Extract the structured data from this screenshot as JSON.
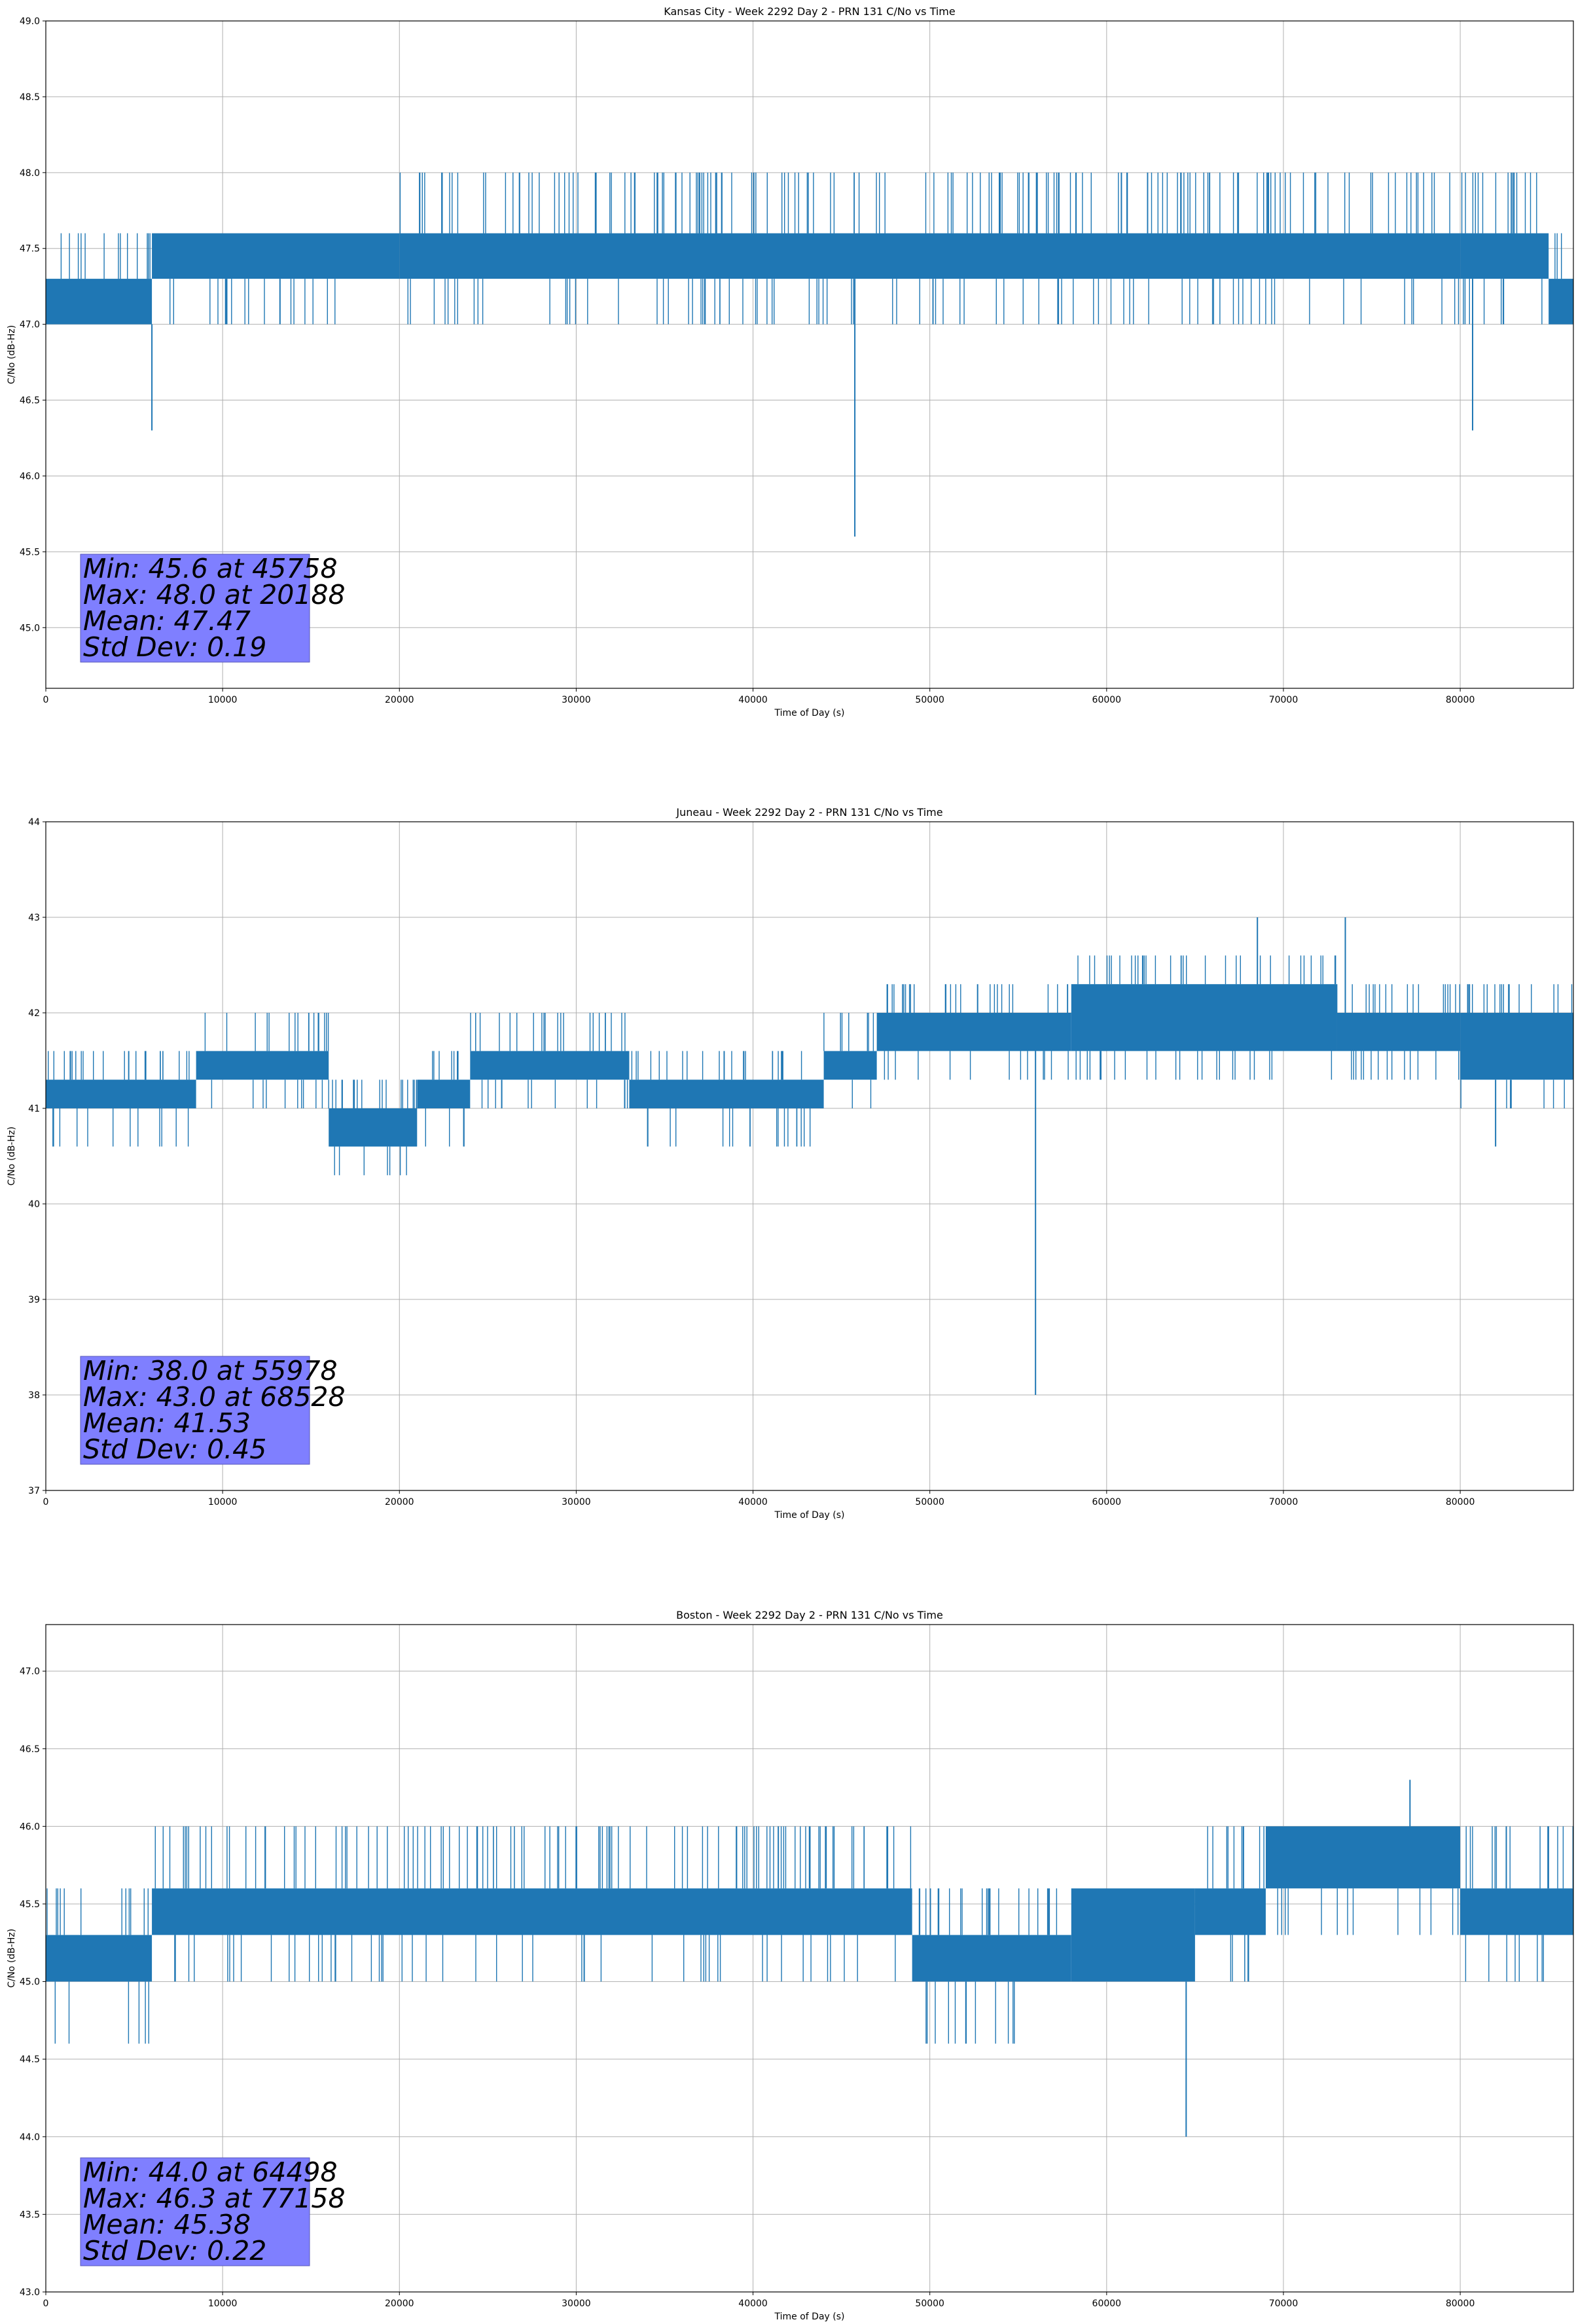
{
  "figure": {
    "colors": {
      "series": "#1f77b4",
      "grid": "#b0b0b0",
      "statbox": "#7f7fff",
      "axis": "#000000"
    }
  },
  "chart_data": [
    {
      "type": "line",
      "title": "Kansas City - Week 2292 Day 2 - PRN 131 C/No vs Time",
      "xlabel": "Time of Day (s)",
      "ylabel": "C/No (dB-Hz)",
      "xlim": [
        0,
        86400
      ],
      "ylim": [
        44.6,
        49.0
      ],
      "xticks": [
        0,
        10000,
        20000,
        30000,
        40000,
        50000,
        60000,
        70000,
        80000
      ],
      "xtick_labels": [
        "0",
        "10000",
        "20000",
        "30000",
        "40000",
        "50000",
        "60000",
        "70000",
        "80000"
      ],
      "yticks": [
        45.0,
        45.5,
        46.0,
        46.5,
        47.0,
        47.5,
        48.0,
        48.5,
        49.0
      ],
      "ytick_labels": [
        "45.0",
        "45.5",
        "46.0",
        "46.5",
        "47.0",
        "47.5",
        "48.0",
        "48.5",
        "49.0"
      ],
      "grid": true,
      "band_segments": [
        {
          "x": [
            0,
            6000
          ],
          "low": 47.0,
          "high": 47.3,
          "spike_up": 47.6
        },
        {
          "x": [
            6000,
            20000
          ],
          "low": 47.3,
          "high": 47.6,
          "spike_down": 47.0
        },
        {
          "x": [
            20000,
            80000
          ],
          "low": 47.3,
          "high": 47.6,
          "spike_up": 48.0,
          "spike_down": 47.0
        },
        {
          "x": [
            80000,
            85000
          ],
          "low": 47.3,
          "high": 47.6,
          "spike_up": 48.0,
          "spike_down": 47.0
        },
        {
          "x": [
            85000,
            86400
          ],
          "low": 47.0,
          "high": 47.3,
          "spike_up": 47.6
        }
      ],
      "dips": [
        {
          "x": 6000,
          "y": 46.3
        },
        {
          "x": 45758,
          "y": 45.6
        },
        {
          "x": 80700,
          "y": 46.3
        }
      ],
      "stats": {
        "min_value": 45.6,
        "min_time": 45758,
        "max_value": 48.0,
        "max_time": 20188,
        "mean": 47.47,
        "std_dev": 0.19
      },
      "stats_text": {
        "min": "Min: 45.6 at 45758",
        "max": "Max: 48.0 at 20188",
        "mean": "Mean: 47.47",
        "std": "Std Dev: 0.19"
      }
    },
    {
      "type": "line",
      "title": "Juneau - Week 2292 Day 2 - PRN 131 C/No vs Time",
      "xlabel": "Time of Day (s)",
      "ylabel": "C/No (dB-Hz)",
      "xlim": [
        0,
        86400
      ],
      "ylim": [
        37,
        44
      ],
      "xticks": [
        0,
        10000,
        20000,
        30000,
        40000,
        50000,
        60000,
        70000,
        80000
      ],
      "xtick_labels": [
        "0",
        "10000",
        "20000",
        "30000",
        "40000",
        "50000",
        "60000",
        "70000",
        "80000"
      ],
      "yticks": [
        37,
        38,
        39,
        40,
        41,
        42,
        43,
        44
      ],
      "ytick_labels": [
        "37",
        "38",
        "39",
        "40",
        "41",
        "42",
        "43",
        "44"
      ],
      "grid": true,
      "band_segments": [
        {
          "x": [
            0,
            8500
          ],
          "low": 41.0,
          "high": 41.3,
          "spike_up": 41.6,
          "spike_down": 40.6
        },
        {
          "x": [
            8500,
            16000
          ],
          "low": 41.3,
          "high": 41.6,
          "spike_up": 42.0,
          "spike_down": 41.0
        },
        {
          "x": [
            16000,
            21000
          ],
          "low": 40.6,
          "high": 41.0,
          "spike_up": 41.3,
          "spike_down": 40.3
        },
        {
          "x": [
            21000,
            24000
          ],
          "low": 41.0,
          "high": 41.3,
          "spike_up": 41.6,
          "spike_down": 40.6
        },
        {
          "x": [
            24000,
            33000
          ],
          "low": 41.3,
          "high": 41.6,
          "spike_up": 42.0,
          "spike_down": 41.0
        },
        {
          "x": [
            33000,
            44000
          ],
          "low": 41.0,
          "high": 41.3,
          "spike_up": 41.6,
          "spike_down": 40.6
        },
        {
          "x": [
            44000,
            47000
          ],
          "low": 41.3,
          "high": 41.6,
          "spike_up": 42.0,
          "spike_down": 41.0
        },
        {
          "x": [
            47000,
            58000
          ],
          "low": 41.6,
          "high": 42.0,
          "spike_up": 42.3,
          "spike_down": 41.3
        },
        {
          "x": [
            58000,
            73000
          ],
          "low": 41.6,
          "high": 42.3,
          "spike_up": 42.6,
          "spike_down": 41.3
        },
        {
          "x": [
            73000,
            80000
          ],
          "low": 41.6,
          "high": 42.0,
          "spike_up": 42.3,
          "spike_down": 41.3
        },
        {
          "x": [
            80000,
            86400
          ],
          "low": 41.3,
          "high": 42.0,
          "spike_up": 42.3,
          "spike_down": 41.0
        }
      ],
      "dips": [
        {
          "x": 55978,
          "y": 38.0
        },
        {
          "x": 82000,
          "y": 40.6
        }
      ],
      "peaks": [
        {
          "x": 68528,
          "y": 43.0
        },
        {
          "x": 73500,
          "y": 43.0
        }
      ],
      "stats": {
        "min_value": 38.0,
        "min_time": 55978,
        "max_value": 43.0,
        "max_time": 68528,
        "mean": 41.53,
        "std_dev": 0.45
      },
      "stats_text": {
        "min": "Min: 38.0 at 55978",
        "max": "Max: 43.0 at 68528",
        "mean": "Mean: 41.53",
        "std": "Std Dev: 0.45"
      }
    },
    {
      "type": "line",
      "title": "Boston - Week 2292 Day 2 - PRN 131 C/No vs Time",
      "xlabel": "Time of Day (s)",
      "ylabel": "C/No (dB-Hz)",
      "xlim": [
        0,
        86400
      ],
      "ylim": [
        43.0,
        47.3
      ],
      "xticks": [
        0,
        10000,
        20000,
        30000,
        40000,
        50000,
        60000,
        70000,
        80000
      ],
      "xtick_labels": [
        "0",
        "10000",
        "20000",
        "30000",
        "40000",
        "50000",
        "60000",
        "70000",
        "80000"
      ],
      "yticks": [
        43.0,
        43.5,
        44.0,
        44.5,
        45.0,
        45.5,
        46.0,
        46.5,
        47.0
      ],
      "ytick_labels": [
        "43.0",
        "43.5",
        "44.0",
        "44.5",
        "45.0",
        "45.5",
        "46.0",
        "46.5",
        "47.0"
      ],
      "grid": true,
      "band_segments": [
        {
          "x": [
            0,
            6000
          ],
          "low": 45.0,
          "high": 45.3,
          "spike_up": 45.6,
          "spike_down": 44.6
        },
        {
          "x": [
            6000,
            49000
          ],
          "low": 45.3,
          "high": 45.6,
          "spike_up": 46.0,
          "spike_down": 45.0
        },
        {
          "x": [
            49000,
            58000
          ],
          "low": 45.0,
          "high": 45.3,
          "spike_up": 45.6,
          "spike_down": 44.6
        },
        {
          "x": [
            58000,
            65000
          ],
          "low": 45.0,
          "high": 45.6,
          "spike_up": 45.6,
          "spike_down": 45.0
        },
        {
          "x": [
            65000,
            69000
          ],
          "low": 45.3,
          "high": 45.6,
          "spike_up": 46.0,
          "spike_down": 45.0
        },
        {
          "x": [
            69000,
            80000
          ],
          "low": 45.6,
          "high": 46.0,
          "spike_up": 46.0,
          "spike_down": 45.3
        },
        {
          "x": [
            80000,
            86400
          ],
          "low": 45.3,
          "high": 45.6,
          "spike_up": 46.0,
          "spike_down": 45.0
        }
      ],
      "dips": [
        {
          "x": 64498,
          "y": 44.0
        }
      ],
      "peaks": [
        {
          "x": 77158,
          "y": 46.3
        }
      ],
      "stats": {
        "min_value": 44.0,
        "min_time": 64498,
        "max_value": 46.3,
        "max_time": 77158,
        "mean": 45.38,
        "std_dev": 0.22
      },
      "stats_text": {
        "min": "Min: 44.0 at 64498",
        "max": "Max: 46.3 at 77158",
        "mean": "Mean: 45.38",
        "std": "Std Dev: 0.22"
      }
    }
  ]
}
